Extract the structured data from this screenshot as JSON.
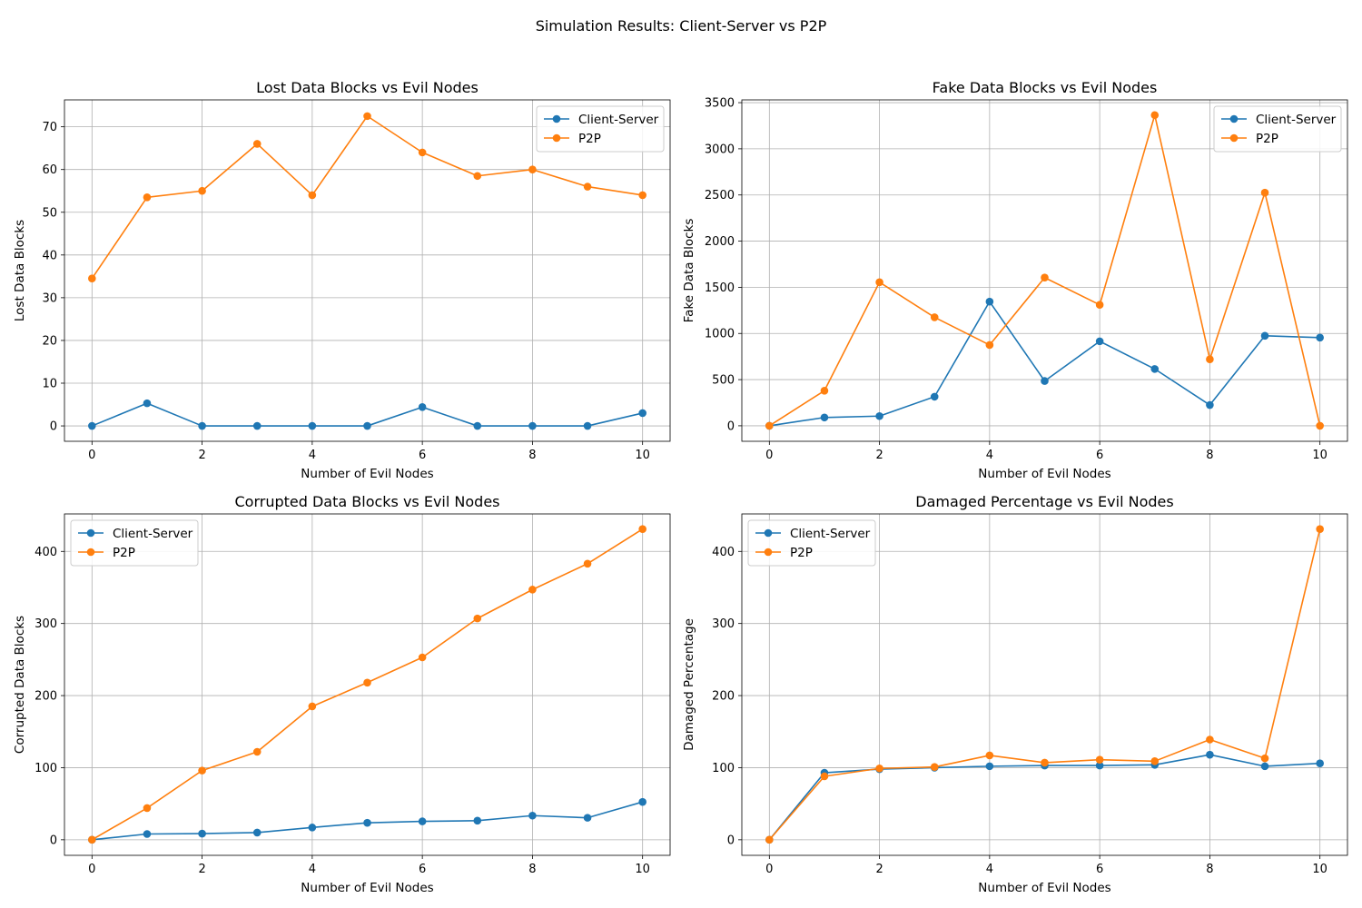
{
  "suptitle": "Simulation Results: Client-Server vs P2P",
  "colors": {
    "client_server": "#1f77b4",
    "p2p": "#ff7f0e",
    "grid": "#b0b0b0"
  },
  "chart_data": [
    {
      "type": "line",
      "title": "Lost Data Blocks vs Evil Nodes",
      "xlabel": "Number of Evil Nodes",
      "ylabel": "Lost Data Blocks",
      "x": [
        0,
        1,
        2,
        3,
        4,
        5,
        6,
        7,
        8,
        9,
        10
      ],
      "xlim": [
        -0.5,
        10.5
      ],
      "ylim": [
        -3.6,
        76.3
      ],
      "xticks": [
        0,
        2,
        4,
        6,
        8,
        10
      ],
      "yticks": [
        0,
        10,
        20,
        30,
        40,
        50,
        60,
        70
      ],
      "grid": true,
      "legend": "top-right",
      "series": [
        {
          "name": "Client-Server",
          "color": "#1f77b4",
          "values": [
            0,
            5.3,
            0,
            0,
            0,
            0,
            4.4,
            0,
            0,
            0,
            3.0
          ]
        },
        {
          "name": "P2P",
          "color": "#ff7f0e",
          "values": [
            34.5,
            53.5,
            55.0,
            66.0,
            54.0,
            72.5,
            64.0,
            58.5,
            60.0,
            56.0,
            54.0
          ]
        }
      ]
    },
    {
      "type": "line",
      "title": "Fake Data Blocks vs Evil Nodes",
      "xlabel": "Number of Evil Nodes",
      "ylabel": "Fake Data Blocks",
      "x": [
        0,
        1,
        2,
        3,
        4,
        5,
        6,
        7,
        8,
        9,
        10
      ],
      "xlim": [
        -0.5,
        10.5
      ],
      "ylim": [
        -168,
        3530
      ],
      "xticks": [
        0,
        2,
        4,
        6,
        8,
        10
      ],
      "yticks": [
        0,
        500,
        1000,
        1500,
        2000,
        2500,
        3000,
        3500
      ],
      "grid": true,
      "legend": "top-right",
      "series": [
        {
          "name": "Client-Server",
          "color": "#1f77b4",
          "values": [
            0,
            90,
            105,
            315,
            1345,
            485,
            915,
            615,
            225,
            975,
            955
          ]
        },
        {
          "name": "P2P",
          "color": "#ff7f0e",
          "values": [
            0,
            380,
            1555,
            1175,
            875,
            1605,
            1310,
            3365,
            720,
            2525,
            0
          ]
        }
      ]
    },
    {
      "type": "line",
      "title": "Corrupted Data Blocks vs Evil Nodes",
      "xlabel": "Number of Evil Nodes",
      "ylabel": "Corrupted Data Blocks",
      "x": [
        0,
        1,
        2,
        3,
        4,
        5,
        6,
        7,
        8,
        9,
        10
      ],
      "xlim": [
        -0.5,
        10.5
      ],
      "ylim": [
        -21.6,
        452
      ],
      "xticks": [
        0,
        2,
        4,
        6,
        8,
        10
      ],
      "yticks": [
        0,
        100,
        200,
        300,
        400
      ],
      "grid": true,
      "legend": "top-left",
      "series": [
        {
          "name": "Client-Server",
          "color": "#1f77b4",
          "values": [
            0,
            8,
            8.5,
            10,
            17,
            23.5,
            25.5,
            26.5,
            33.5,
            30.5,
            52.5
          ]
        },
        {
          "name": "P2P",
          "color": "#ff7f0e",
          "values": [
            0,
            44,
            96,
            122,
            185,
            218,
            253,
            307,
            347,
            383,
            431
          ]
        }
      ]
    },
    {
      "type": "line",
      "title": "Damaged Percentage vs Evil Nodes",
      "xlabel": "Number of Evil Nodes",
      "ylabel": "Damaged Percentage",
      "x": [
        0,
        1,
        2,
        3,
        4,
        5,
        6,
        7,
        8,
        9,
        10
      ],
      "xlim": [
        -0.5,
        10.5
      ],
      "ylim": [
        -21.6,
        452
      ],
      "xticks": [
        0,
        2,
        4,
        6,
        8,
        10
      ],
      "yticks": [
        0,
        100,
        200,
        300,
        400
      ],
      "grid": true,
      "legend": "top-left",
      "series": [
        {
          "name": "Client-Server",
          "color": "#1f77b4",
          "values": [
            0,
            93,
            98,
            100,
            102,
            103,
            103,
            104,
            118,
            102,
            106
          ]
        },
        {
          "name": "P2P",
          "color": "#ff7f0e",
          "values": [
            0,
            88,
            99,
            101,
            117,
            107,
            111,
            109,
            139,
            113,
            431
          ]
        }
      ]
    }
  ]
}
